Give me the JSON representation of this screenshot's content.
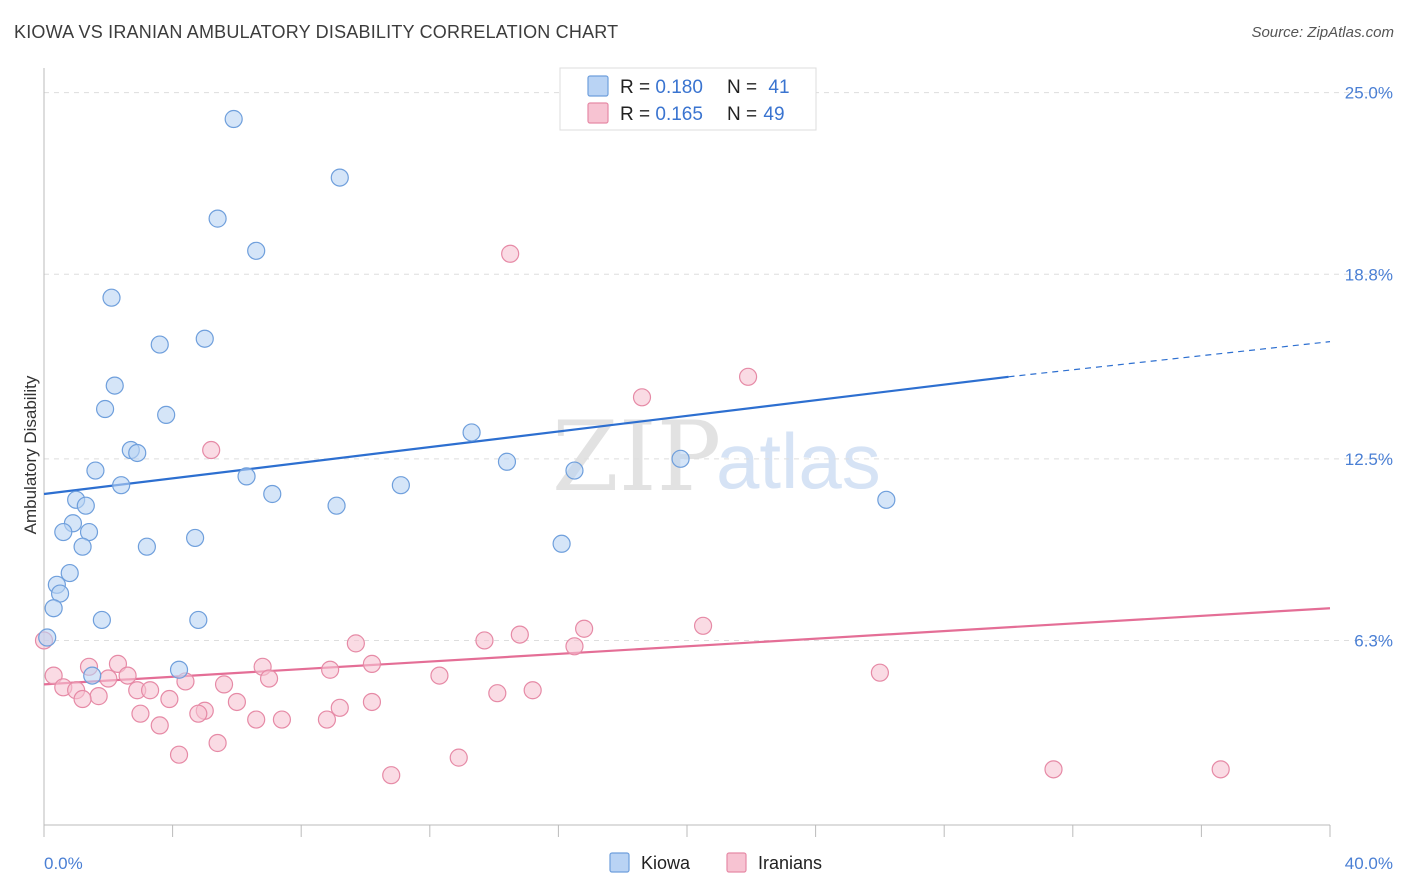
{
  "title": "KIOWA VS IRANIAN AMBULATORY DISABILITY CORRELATION CHART",
  "source": "Source: ZipAtlas.com",
  "watermark": {
    "part1": "ZIP",
    "part2": "atlas"
  },
  "colors": {
    "kiowa_fill": "#b9d3f4",
    "kiowa_stroke": "#6f9fdc",
    "kiowa_line": "#2d6fd0",
    "iranians_fill": "#f7c3d2",
    "iranians_stroke": "#e68aa6",
    "iranians_line": "#e46e96",
    "tick_text": "#4a7fd4",
    "grid": "#dddddd"
  },
  "legend": {
    "kiowa": {
      "r_label": "R = ",
      "r_value": "0.180",
      "n_label": "N = ",
      "n_value": "41"
    },
    "iranians": {
      "r_label": "R = ",
      "r_value": "0.165",
      "n_label": "N = ",
      "n_value": "49"
    }
  },
  "chart_data": {
    "type": "scatter",
    "title": "KIOWA VS IRANIAN AMBULATORY DISABILITY CORRELATION CHART",
    "xlabel": "",
    "ylabel": "Ambulatory Disability",
    "xlim": [
      0,
      40
    ],
    "ylim": [
      0,
      25.5
    ],
    "x_tick_labels": [
      "0.0%",
      "40.0%"
    ],
    "y_ticks": [
      6.3,
      12.5,
      18.8,
      25.0
    ],
    "y_tick_labels": [
      "6.3%",
      "12.5%",
      "18.8%",
      "25.0%"
    ],
    "legend_labels": [
      "Kiowa",
      "Iranians"
    ],
    "series": [
      {
        "name": "Kiowa",
        "R": 0.18,
        "N": 41,
        "trend": {
          "x0": 0,
          "y0": 11.3,
          "x1": 30.0,
          "y1": 15.3,
          "dash_x1": 40,
          "dash_y1": 16.5
        },
        "points": [
          [
            5.9,
            24.1
          ],
          [
            9.2,
            22.1
          ],
          [
            5.4,
            20.7
          ],
          [
            6.6,
            19.6
          ],
          [
            2.1,
            18.0
          ],
          [
            3.6,
            16.4
          ],
          [
            5.0,
            16.6
          ],
          [
            2.2,
            15.0
          ],
          [
            1.9,
            14.2
          ],
          [
            3.8,
            14.0
          ],
          [
            13.3,
            13.4
          ],
          [
            2.7,
            12.8
          ],
          [
            2.9,
            12.7
          ],
          [
            14.4,
            12.4
          ],
          [
            19.8,
            12.5
          ],
          [
            1.6,
            12.1
          ],
          [
            16.5,
            12.1
          ],
          [
            6.3,
            11.9
          ],
          [
            2.4,
            11.6
          ],
          [
            11.1,
            11.6
          ],
          [
            7.1,
            11.3
          ],
          [
            1.0,
            11.1
          ],
          [
            26.2,
            11.1
          ],
          [
            1.3,
            10.9
          ],
          [
            9.1,
            10.9
          ],
          [
            0.9,
            10.3
          ],
          [
            0.6,
            10.0
          ],
          [
            1.4,
            10.0
          ],
          [
            4.7,
            9.8
          ],
          [
            1.2,
            9.5
          ],
          [
            3.2,
            9.5
          ],
          [
            16.1,
            9.6
          ],
          [
            0.8,
            8.6
          ],
          [
            0.4,
            8.2
          ],
          [
            0.5,
            7.9
          ],
          [
            0.3,
            7.4
          ],
          [
            1.8,
            7.0
          ],
          [
            4.8,
            7.0
          ],
          [
            0.1,
            6.4
          ],
          [
            4.2,
            5.3
          ],
          [
            1.5,
            5.1
          ]
        ]
      },
      {
        "name": "Iranians",
        "R": 0.165,
        "N": 49,
        "trend": {
          "x0": 0,
          "y0": 4.8,
          "x1": 40,
          "y1": 7.4
        },
        "points": [
          [
            14.5,
            19.5
          ],
          [
            21.9,
            15.3
          ],
          [
            18.6,
            14.6
          ],
          [
            5.2,
            12.8
          ],
          [
            20.5,
            6.8
          ],
          [
            16.8,
            6.7
          ],
          [
            14.8,
            6.5
          ],
          [
            13.7,
            6.3
          ],
          [
            9.7,
            6.2
          ],
          [
            16.5,
            6.1
          ],
          [
            0.0,
            6.3
          ],
          [
            10.2,
            5.5
          ],
          [
            2.3,
            5.5
          ],
          [
            1.4,
            5.4
          ],
          [
            6.8,
            5.4
          ],
          [
            8.9,
            5.3
          ],
          [
            26.0,
            5.2
          ],
          [
            0.3,
            5.1
          ],
          [
            12.3,
            5.1
          ],
          [
            2.6,
            5.1
          ],
          [
            2.0,
            5.0
          ],
          [
            7.0,
            5.0
          ],
          [
            4.4,
            4.9
          ],
          [
            5.6,
            4.8
          ],
          [
            0.6,
            4.7
          ],
          [
            1.0,
            4.6
          ],
          [
            2.9,
            4.6
          ],
          [
            3.3,
            4.6
          ],
          [
            15.2,
            4.6
          ],
          [
            14.1,
            4.5
          ],
          [
            1.7,
            4.4
          ],
          [
            1.2,
            4.3
          ],
          [
            3.9,
            4.3
          ],
          [
            6.0,
            4.2
          ],
          [
            10.2,
            4.2
          ],
          [
            9.2,
            4.0
          ],
          [
            5.0,
            3.9
          ],
          [
            4.8,
            3.8
          ],
          [
            3.0,
            3.8
          ],
          [
            6.6,
            3.6
          ],
          [
            7.4,
            3.6
          ],
          [
            8.8,
            3.6
          ],
          [
            3.6,
            3.4
          ],
          [
            5.4,
            2.8
          ],
          [
            4.2,
            2.4
          ],
          [
            12.9,
            2.3
          ],
          [
            31.4,
            1.9
          ],
          [
            36.6,
            1.9
          ],
          [
            10.8,
            1.7
          ]
        ]
      }
    ]
  }
}
